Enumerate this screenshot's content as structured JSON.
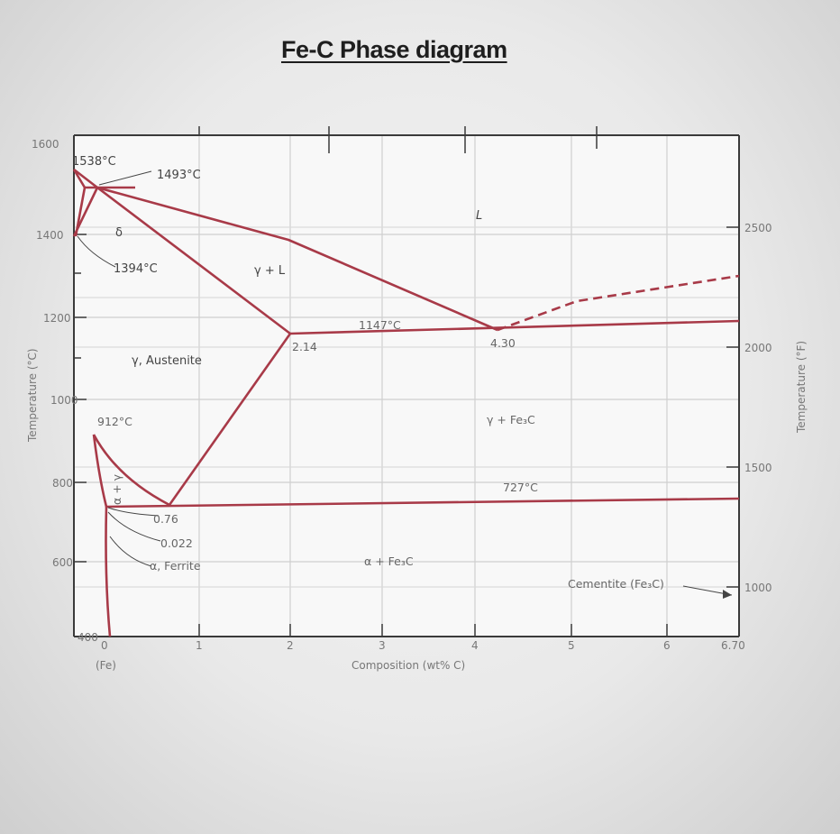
{
  "title": "Fe-C Phase diagram",
  "x_axis": {
    "label": "Composition (wt% C)",
    "ticks": [
      "0",
      "1",
      "2",
      "3",
      "4",
      "5",
      "6",
      "6.70"
    ],
    "sub_label": "(Fe)"
  },
  "y_axis_left": {
    "label": "Temperature (°C)",
    "ticks": [
      "400",
      "600",
      "800",
      "1000",
      "1200",
      "1400",
      "1600"
    ]
  },
  "y_axis_right": {
    "label": "Temperature (°F)",
    "ticks": [
      "1000",
      "1500",
      "2000",
      "2500"
    ]
  },
  "labels": {
    "t1538": "1538°C",
    "t1493": "1493°C",
    "t1394": "1394°C",
    "t1147": "1147°C",
    "t912": "912°C",
    "t727": "727°C",
    "c214": "2.14",
    "c430": "4.30",
    "c076": "0.76",
    "c0022": "0.022",
    "delta": "δ",
    "liquid": "L",
    "gamma_l": "γ + L",
    "austenite": "γ, Austenite",
    "gamma_fe3c": "γ + Fe₃C",
    "alpha_fe3c": "α + Fe₃C",
    "ferrite": "α, Ferrite",
    "cementite": "Cementite (Fe₃C)",
    "alpha_gamma": "α + γ"
  },
  "colors": {
    "phase_line": "#a83a48",
    "grid": "#c8c8c8",
    "axis": "#3a3a3a"
  },
  "chart_data": {
    "type": "phase-diagram",
    "xlim": [
      0,
      6.7
    ],
    "ylim": [
      400,
      1600
    ],
    "key_points": [
      {
        "label": "1538°C",
        "x": 0,
        "y": 1538
      },
      {
        "label": "1493°C",
        "x": 0.17,
        "y": 1493
      },
      {
        "label": "1394°C",
        "x": 0,
        "y": 1394
      },
      {
        "label": "1147°C",
        "x": 4.3,
        "y": 1147
      },
      {
        "label": "912°C",
        "x": 0,
        "y": 912
      },
      {
        "label": "727°C",
        "x": 0.76,
        "y": 727
      },
      {
        "label": "2.14",
        "x": 2.14,
        "y": 1147
      },
      {
        "label": "4.30",
        "x": 4.3,
        "y": 1147
      },
      {
        "label": "0.76",
        "x": 0.76,
        "y": 727
      },
      {
        "label": "0.022",
        "x": 0.022,
        "y": 727
      }
    ]
  }
}
